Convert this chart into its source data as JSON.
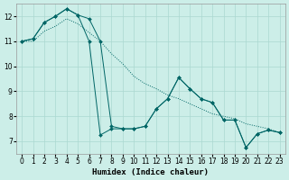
{
  "xlabel": "Humidex (Indice chaleur)",
  "background_color": "#cceee8",
  "grid_color": "#aad8d0",
  "line_color": "#006666",
  "xlim": [
    -0.5,
    23.5
  ],
  "ylim": [
    6.5,
    12.5
  ],
  "yticks": [
    7,
    8,
    9,
    10,
    11,
    12
  ],
  "xticks": [
    0,
    1,
    2,
    3,
    4,
    5,
    6,
    7,
    8,
    9,
    10,
    11,
    12,
    13,
    14,
    15,
    16,
    17,
    18,
    19,
    20,
    21,
    22,
    23
  ],
  "line1_x": [
    0,
    1,
    2,
    3,
    4,
    5,
    6,
    7,
    8,
    9,
    10,
    11,
    12,
    13,
    14,
    15,
    16,
    17,
    18,
    19,
    20,
    21,
    22,
    23
  ],
  "line1_y": [
    11.0,
    11.1,
    11.75,
    12.0,
    12.3,
    12.05,
    11.0,
    7.25,
    7.5,
    7.5,
    7.5,
    7.6,
    8.3,
    8.7,
    9.55,
    9.1,
    8.7,
    8.55,
    7.85,
    7.85,
    6.75,
    7.3,
    7.45,
    7.35
  ],
  "line2_x": [
    0,
    1,
    2,
    3,
    4,
    5,
    6,
    7,
    8,
    9,
    10,
    11,
    12,
    13,
    14,
    15,
    16,
    17,
    18,
    19,
    20,
    21,
    22,
    23
  ],
  "line2_y": [
    11.0,
    11.1,
    11.75,
    12.0,
    12.3,
    12.05,
    11.9,
    11.0,
    7.6,
    7.5,
    7.5,
    7.6,
    8.3,
    8.7,
    9.55,
    9.1,
    8.7,
    8.55,
    7.85,
    7.85,
    6.75,
    7.3,
    7.45,
    7.35
  ],
  "line3_x": [
    0,
    1,
    2,
    3,
    4,
    5,
    6,
    7,
    8,
    9,
    10,
    11,
    12,
    13,
    14,
    15,
    16,
    17,
    18,
    19,
    20,
    21,
    22,
    23
  ],
  "line3_y": [
    11.0,
    11.0,
    11.4,
    11.6,
    11.9,
    11.7,
    11.35,
    11.0,
    10.5,
    10.1,
    9.6,
    9.3,
    9.1,
    8.85,
    8.7,
    8.5,
    8.3,
    8.1,
    8.0,
    7.9,
    7.7,
    7.6,
    7.5,
    7.35
  ]
}
